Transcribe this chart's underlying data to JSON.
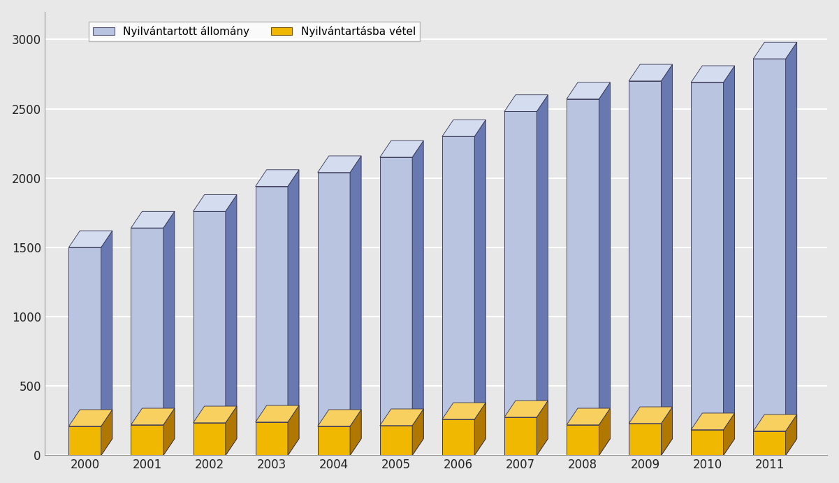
{
  "years": [
    2000,
    2001,
    2002,
    2003,
    2004,
    2005,
    2006,
    2007,
    2008,
    2009,
    2010,
    2011
  ],
  "nyilvantartott": [
    1500,
    1640,
    1760,
    1940,
    2040,
    2150,
    2300,
    2480,
    2570,
    2700,
    2690,
    2860
  ],
  "nyilvantartasba": [
    210,
    220,
    235,
    240,
    210,
    215,
    260,
    275,
    220,
    230,
    185,
    175
  ],
  "bar_color_blue_face": "#b8c4e0",
  "bar_color_blue_side": "#6878b0",
  "bar_color_blue_top": "#d4dcf0",
  "bar_color_orange_face": "#f0b800",
  "bar_color_orange_side": "#b07800",
  "bar_color_orange_top": "#f8d060",
  "legend_label_blue": "Nyilvántartott állomány",
  "legend_label_orange": "Nyilvántartásba vétel",
  "ylim": [
    0,
    3000
  ],
  "yticks": [
    0,
    500,
    1000,
    1500,
    2000,
    2500,
    3000
  ],
  "bg_color": "#e8e8e8",
  "plot_bg": "#e8e8e8",
  "grid_color": "#ffffff"
}
